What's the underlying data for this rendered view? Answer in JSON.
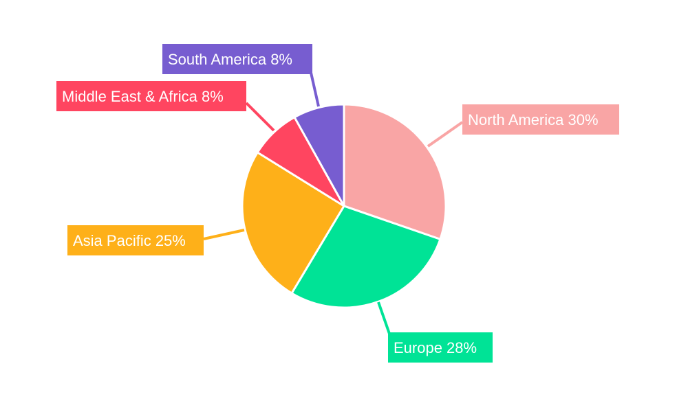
{
  "chart_data": {
    "type": "pie",
    "start_angle": "12 o'clock, clockwise",
    "slices": [
      {
        "label": "North America",
        "value": 30,
        "display": "North America 30%",
        "color": "#F9A5A5"
      },
      {
        "label": "Europe",
        "value": 28,
        "display": "Europe 28%",
        "color": "#00E396"
      },
      {
        "label": "Asia Pacific",
        "value": 25,
        "display": "Asia Pacific 25%",
        "color": "#FEB019"
      },
      {
        "label": "Middle East & Africa",
        "value": 8,
        "display": "Middle East & Africa 8%",
        "color": "#FF4560"
      },
      {
        "label": "South America",
        "value": 8,
        "display": "South America 8%",
        "color": "#775DD0"
      }
    ],
    "legend": "none",
    "slice_border_color": "#FFFFFF"
  }
}
